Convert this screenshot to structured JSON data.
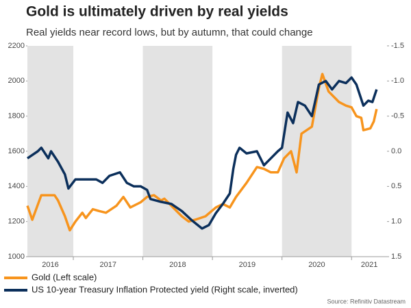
{
  "chart_data": {
    "type": "line",
    "title": "Gold is ultimately driven by real yields",
    "subtitle": "Real yields near record lows, but by autumn, that could change",
    "source": "Source: Refinitiv Datastream",
    "xlim": [
      2016.34,
      2021.51
    ],
    "xticks": [
      2016,
      2017,
      2018,
      2019,
      2020,
      2021
    ],
    "shaded_years": [
      2016,
      2018,
      2020
    ],
    "ylim": [
      1000,
      2200
    ],
    "yticks": [
      1000,
      1200,
      1400,
      1600,
      1800,
      2000,
      2200
    ],
    "y2lim": [
      1.5,
      -1.5
    ],
    "y2ticks": [
      -1.5,
      {
        "value": -1,
        "label": "-1.0"
      },
      -0.5,
      {
        "value": 0,
        "label": "0.0"
      },
      0.5,
      {
        "value": 1,
        "label": "1.0"
      },
      1.5
    ],
    "legend": "bottom-left",
    "series": [
      {
        "name": "Gold (Left scale)",
        "color": "#f7941d",
        "x": [
          2016.34,
          2016.41,
          2016.54,
          2016.73,
          2016.78,
          2016.88,
          2016.95,
          2017.03,
          2017.13,
          2017.18,
          2017.28,
          2017.37,
          2017.47,
          2017.62,
          2017.72,
          2017.82,
          2017.92,
          2017.97,
          2018.06,
          2018.16,
          2018.26,
          2018.31,
          2018.41,
          2018.56,
          2018.66,
          2018.75,
          2018.9,
          2019.05,
          2019.15,
          2019.25,
          2019.34,
          2019.49,
          2019.64,
          2019.74,
          2019.84,
          2019.94,
          2020.03,
          2020.13,
          2020.21,
          2020.28,
          2020.43,
          2020.53,
          2020.58,
          2020.67,
          2020.77,
          2020.82,
          2020.92,
          2021.0,
          2021.07,
          2021.14,
          2021.17,
          2021.27,
          2021.32,
          2021.36
        ],
        "values": [
          1290,
          1210,
          1350,
          1350,
          1320,
          1230,
          1150,
          1200,
          1250,
          1220,
          1270,
          1260,
          1250,
          1290,
          1340,
          1280,
          1300,
          1310,
          1340,
          1350,
          1320,
          1330,
          1290,
          1230,
          1200,
          1210,
          1230,
          1280,
          1300,
          1280,
          1340,
          1420,
          1510,
          1500,
          1480,
          1480,
          1560,
          1600,
          1480,
          1700,
          1740,
          1960,
          2040,
          1940,
          1900,
          1880,
          1860,
          1850,
          1800,
          1790,
          1720,
          1730,
          1770,
          1840
        ]
      },
      {
        "name": "US 10-year Treasury Inflation Protected yield (Right scale, inverted)",
        "color": "#0b2f5b",
        "axis": "y2",
        "x": [
          2016.34,
          2016.49,
          2016.54,
          2016.64,
          2016.68,
          2016.78,
          2016.88,
          2016.93,
          2017.03,
          2017.18,
          2017.33,
          2017.42,
          2017.52,
          2017.67,
          2017.77,
          2017.87,
          2017.97,
          2018.06,
          2018.11,
          2018.26,
          2018.41,
          2018.56,
          2018.7,
          2018.85,
          2018.95,
          2019.05,
          2019.15,
          2019.25,
          2019.3,
          2019.34,
          2019.39,
          2019.49,
          2019.64,
          2019.74,
          2019.84,
          2019.94,
          2020.0,
          2020.08,
          2020.16,
          2020.23,
          2020.33,
          2020.43,
          2020.53,
          2020.63,
          2020.72,
          2020.82,
          2020.92,
          2021.0,
          2021.07,
          2021.17,
          2021.24,
          2021.3,
          2021.36
        ],
        "values": [
          0.1,
          0.0,
          -0.05,
          0.1,
          0.0,
          0.15,
          0.33,
          0.53,
          0.4,
          0.4,
          0.4,
          0.45,
          0.35,
          0.3,
          0.45,
          0.5,
          0.5,
          0.55,
          0.68,
          0.72,
          0.75,
          0.85,
          0.98,
          1.1,
          1.05,
          0.88,
          0.75,
          0.6,
          0.25,
          0.05,
          -0.05,
          0.03,
          0.0,
          0.2,
          0.1,
          0.0,
          -0.05,
          -0.55,
          -0.4,
          -0.7,
          -0.65,
          -0.5,
          -0.95,
          -1.0,
          -0.88,
          -1.0,
          -0.97,
          -1.05,
          -0.95,
          -0.65,
          -0.72,
          -0.7,
          -0.88
        ]
      }
    ]
  }
}
